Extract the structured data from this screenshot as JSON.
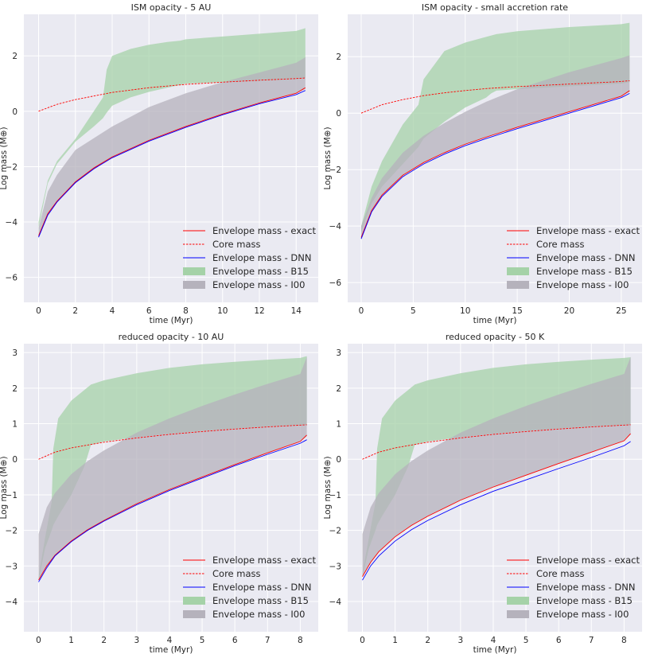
{
  "figure": {
    "background": "#ffffff",
    "panel_background": "#eaeaf2",
    "grid_color": "#ffffff"
  },
  "legend_labels": [
    "Envelope mass - exact",
    "Core mass",
    "Envelope mass - DNN",
    "Envelope mass - B15",
    "Envelope mass - I00"
  ],
  "colors": {
    "exact": "#ff0000",
    "core": "#ff0000",
    "dnn": "#0000ff",
    "b15": "#a5d2a8",
    "i00": "#b5b2bc"
  },
  "chart_data": [
    {
      "type": "area",
      "title": "ISM opacity - 5 AU",
      "xlabel": "time (Myr)",
      "ylabel": "Log mass (M⊕)",
      "xlim": [
        -0.8,
        15.2
      ],
      "ylim": [
        -6.9,
        3.5
      ],
      "xticks": [
        0,
        2,
        4,
        6,
        8,
        10,
        12,
        14
      ],
      "yticks": [
        -6,
        -4,
        -2,
        0,
        2
      ],
      "grid": true,
      "legend": "bottom-right",
      "series": [
        {
          "name": "Envelope mass - exact",
          "style": "solid",
          "color": "#ff0000",
          "x": [
            0,
            0.5,
            1,
            2,
            3,
            4,
            6,
            8,
            10,
            12,
            14,
            14.5
          ],
          "y": [
            -4.5,
            -3.7,
            -3.25,
            -2.55,
            -2.05,
            -1.65,
            -1.05,
            -0.55,
            -0.1,
            0.3,
            0.65,
            0.85
          ]
        },
        {
          "name": "Core mass",
          "style": "dashed",
          "color": "#ff0000",
          "x": [
            0,
            1,
            2,
            4,
            6,
            8,
            10,
            12,
            14,
            14.5
          ],
          "y": [
            0,
            0.25,
            0.42,
            0.68,
            0.85,
            0.97,
            1.05,
            1.12,
            1.18,
            1.2
          ]
        },
        {
          "name": "Envelope mass - DNN",
          "style": "solid",
          "color": "#0000ff",
          "x": [
            0,
            0.5,
            1,
            2,
            3,
            4,
            6,
            8,
            10,
            12,
            14,
            14.5
          ],
          "y": [
            -4.55,
            -3.75,
            -3.28,
            -2.58,
            -2.08,
            -1.68,
            -1.08,
            -0.58,
            -0.13,
            0.27,
            0.6,
            0.75
          ]
        },
        {
          "name": "Envelope mass - B15",
          "type": "band",
          "color": "#a5d2a8",
          "x": [
            0,
            0.5,
            1,
            2,
            3,
            3.5,
            3.7,
            4,
            5,
            6,
            7,
            7.7,
            8,
            10,
            12,
            14,
            14.5
          ],
          "lower": [
            -4.2,
            -2.6,
            -1.9,
            -1.1,
            -0.55,
            -0.25,
            -0.05,
            0.2,
            0.5,
            0.7,
            0.85,
            0.95,
            1.0,
            1.05,
            1.1,
            1.15,
            1.2
          ],
          "upper": [
            -4.0,
            -2.5,
            -1.8,
            -1.0,
            0.0,
            0.5,
            1.5,
            2.0,
            2.25,
            2.4,
            2.5,
            2.55,
            2.6,
            2.7,
            2.8,
            2.9,
            3.0
          ]
        },
        {
          "name": "Envelope mass - I00",
          "type": "band",
          "color": "#b5b2bc",
          "x": [
            0,
            0.5,
            1,
            2,
            4,
            6,
            8,
            10,
            12,
            14,
            14.5
          ],
          "lower": [
            -4.5,
            -3.7,
            -3.25,
            -2.55,
            -1.65,
            -1.05,
            -0.55,
            -0.1,
            0.3,
            0.65,
            0.8
          ],
          "upper": [
            -4.2,
            -2.9,
            -2.3,
            -1.4,
            -0.55,
            0.15,
            0.65,
            1.05,
            1.4,
            1.75,
            1.95
          ]
        }
      ]
    },
    {
      "type": "area",
      "title": "ISM opacity - small accretion rate",
      "xlabel": "time (Myr)",
      "ylabel": "Log mass (M⊕)",
      "xlim": [
        -1.3,
        27
      ],
      "ylim": [
        -6.7,
        3.5
      ],
      "xticks": [
        0,
        5,
        10,
        15,
        20,
        25
      ],
      "yticks": [
        -6,
        -4,
        -2,
        0,
        2
      ],
      "grid": true,
      "legend": "bottom-right",
      "series": [
        {
          "name": "Envelope mass - exact",
          "style": "solid",
          "color": "#ff0000",
          "x": [
            0,
            1,
            2,
            4,
            6,
            8,
            10,
            12,
            15,
            20,
            25,
            25.8
          ],
          "y": [
            -4.4,
            -3.45,
            -2.9,
            -2.2,
            -1.75,
            -1.4,
            -1.1,
            -0.85,
            -0.5,
            0.05,
            0.6,
            0.8
          ]
        },
        {
          "name": "Core mass",
          "style": "dashed",
          "color": "#ff0000",
          "x": [
            0,
            2,
            4,
            6,
            8,
            10,
            12,
            15,
            20,
            25,
            25.8
          ],
          "y": [
            0,
            0.3,
            0.48,
            0.62,
            0.72,
            0.8,
            0.87,
            0.94,
            1.03,
            1.12,
            1.15
          ]
        },
        {
          "name": "Envelope mass - DNN",
          "style": "solid",
          "color": "#0000ff",
          "x": [
            0,
            1,
            2,
            4,
            6,
            8,
            10,
            12,
            15,
            20,
            25,
            25.8
          ],
          "y": [
            -4.45,
            -3.5,
            -2.95,
            -2.25,
            -1.8,
            -1.45,
            -1.15,
            -0.9,
            -0.55,
            0.0,
            0.55,
            0.7
          ]
        },
        {
          "name": "Envelope mass - B15",
          "type": "band",
          "color": "#a5d2a8",
          "x": [
            0,
            1,
            2,
            4,
            5.5,
            6,
            8,
            10,
            12,
            12.5,
            13,
            15,
            20,
            25,
            25.8
          ],
          "lower": [
            -4.2,
            -3.2,
            -2.6,
            -1.8,
            -1.2,
            -0.9,
            -0.3,
            0.2,
            0.55,
            0.7,
            0.8,
            0.85,
            0.95,
            1.05,
            1.1
          ],
          "upper": [
            -4.0,
            -2.6,
            -1.7,
            -0.4,
            0.3,
            1.2,
            2.2,
            2.5,
            2.7,
            2.75,
            2.8,
            2.9,
            3.05,
            3.15,
            3.2
          ]
        },
        {
          "name": "Envelope mass - I00",
          "type": "band",
          "color": "#b5b2bc",
          "x": [
            0,
            1,
            2,
            4,
            6,
            8,
            10,
            12,
            15,
            20,
            25,
            25.8
          ],
          "lower": [
            -4.4,
            -3.45,
            -2.9,
            -2.2,
            -1.75,
            -1.4,
            -1.1,
            -0.85,
            -0.5,
            0.05,
            0.6,
            0.75
          ],
          "upper": [
            -4.0,
            -3.0,
            -2.3,
            -1.4,
            -0.8,
            -0.35,
            0.05,
            0.4,
            0.85,
            1.45,
            1.95,
            2.05
          ]
        }
      ]
    },
    {
      "type": "area",
      "title": "reduced opacity - 10 AU",
      "xlabel": "time (Myr)",
      "ylabel": "Log mass (M⊕)",
      "xlim": [
        -0.45,
        8.55
      ],
      "ylim": [
        -4.85,
        3.25
      ],
      "xticks": [
        0,
        1,
        2,
        3,
        4,
        5,
        6,
        7,
        8
      ],
      "yticks": [
        -4,
        -3,
        -2,
        -1,
        0,
        1,
        2,
        3
      ],
      "grid": true,
      "legend": "bottom-right",
      "series": [
        {
          "name": "Envelope mass - exact",
          "style": "solid",
          "color": "#ff0000",
          "x": [
            0,
            0.25,
            0.5,
            1,
            1.5,
            2,
            3,
            4,
            5,
            6,
            7,
            8,
            8.2
          ],
          "y": [
            -3.4,
            -3.0,
            -2.7,
            -2.3,
            -1.98,
            -1.72,
            -1.25,
            -0.85,
            -0.5,
            -0.15,
            0.18,
            0.5,
            0.68
          ]
        },
        {
          "name": "Core mass",
          "style": "dashed",
          "color": "#ff0000",
          "x": [
            0,
            0.5,
            1,
            2,
            3,
            4,
            5,
            6,
            7,
            8,
            8.2
          ],
          "y": [
            0,
            0.2,
            0.32,
            0.48,
            0.6,
            0.7,
            0.78,
            0.85,
            0.91,
            0.96,
            0.97
          ]
        },
        {
          "name": "Envelope mass - DNN",
          "style": "solid",
          "color": "#0000ff",
          "x": [
            0,
            0.25,
            0.5,
            1,
            1.5,
            2,
            3,
            4,
            5,
            6,
            7,
            8,
            8.2
          ],
          "y": [
            -3.45,
            -3.05,
            -2.72,
            -2.32,
            -2.0,
            -1.74,
            -1.28,
            -0.88,
            -0.53,
            -0.18,
            0.14,
            0.45,
            0.55
          ]
        },
        {
          "name": "Envelope mass - B15",
          "type": "band",
          "color": "#a5d2a8",
          "x": [
            0,
            0.2,
            0.4,
            0.45,
            0.6,
            1,
            1.4,
            1.6,
            2,
            3,
            4,
            5,
            6,
            7,
            8,
            8.2
          ],
          "lower": [
            -3.4,
            -2.5,
            -2.0,
            -1.85,
            -1.6,
            -1.0,
            -0.2,
            0.4,
            0.5,
            0.62,
            0.72,
            0.8,
            0.86,
            0.92,
            0.96,
            0.97
          ],
          "upper": [
            -3.3,
            -2.2,
            -1.2,
            0.3,
            1.15,
            1.65,
            1.95,
            2.1,
            2.22,
            2.42,
            2.57,
            2.67,
            2.74,
            2.8,
            2.85,
            2.9
          ]
        },
        {
          "name": "Envelope mass - I00",
          "type": "band",
          "color": "#b5b2bc",
          "x": [
            0,
            0.25,
            0.5,
            1,
            1.5,
            2,
            3,
            4,
            5,
            6,
            7,
            8,
            8.2
          ],
          "lower": [
            -3.4,
            -3.0,
            -2.7,
            -2.3,
            -1.98,
            -1.72,
            -1.25,
            -0.85,
            -0.5,
            -0.15,
            0.18,
            0.5,
            0.65
          ],
          "upper": [
            -2.1,
            -1.35,
            -0.95,
            -0.42,
            -0.05,
            0.25,
            0.75,
            1.15,
            1.5,
            1.82,
            2.12,
            2.4,
            2.88
          ]
        }
      ]
    },
    {
      "type": "area",
      "title": "reduced opacity - 50 K",
      "xlabel": "time (Myr)",
      "ylabel": "Log mass (M⊕)",
      "xlim": [
        -0.45,
        8.55
      ],
      "ylim": [
        -4.85,
        3.25
      ],
      "xticks": [
        0,
        1,
        2,
        3,
        4,
        5,
        6,
        7,
        8
      ],
      "yticks": [
        -4,
        -3,
        -2,
        -1,
        0,
        1,
        2,
        3
      ],
      "grid": true,
      "legend": "bottom-right",
      "series": [
        {
          "name": "Envelope mass - exact",
          "style": "solid",
          "color": "#ff0000",
          "x": [
            0,
            0.25,
            0.5,
            1,
            1.5,
            2,
            3,
            4,
            5,
            6,
            7,
            8,
            8.2
          ],
          "y": [
            -3.3,
            -2.9,
            -2.6,
            -2.18,
            -1.86,
            -1.6,
            -1.15,
            -0.78,
            -0.45,
            -0.12,
            0.2,
            0.52,
            0.72
          ]
        },
        {
          "name": "Core mass",
          "style": "dashed",
          "color": "#ff0000",
          "x": [
            0,
            0.5,
            1,
            2,
            3,
            4,
            5,
            6,
            7,
            8,
            8.2
          ],
          "y": [
            0,
            0.2,
            0.32,
            0.48,
            0.6,
            0.7,
            0.78,
            0.85,
            0.91,
            0.96,
            0.97
          ]
        },
        {
          "name": "Envelope mass - DNN",
          "style": "solid",
          "color": "#0000ff",
          "x": [
            0,
            0.25,
            0.5,
            1,
            1.5,
            2,
            3,
            4,
            5,
            6,
            7,
            8,
            8.2
          ],
          "y": [
            -3.4,
            -3.0,
            -2.72,
            -2.3,
            -1.98,
            -1.72,
            -1.28,
            -0.9,
            -0.58,
            -0.26,
            0.05,
            0.38,
            0.5
          ]
        },
        {
          "name": "Envelope mass - B15",
          "type": "band",
          "color": "#a5d2a8",
          "x": [
            0,
            0.2,
            0.4,
            0.45,
            0.6,
            1,
            1.4,
            1.6,
            2,
            3,
            4,
            5,
            6,
            7,
            8,
            8.2
          ],
          "lower": [
            -3.3,
            -2.5,
            -2.0,
            -1.85,
            -1.6,
            -1.0,
            -0.2,
            0.4,
            0.5,
            0.62,
            0.72,
            0.8,
            0.86,
            0.92,
            0.96,
            0.97
          ],
          "upper": [
            -3.2,
            -2.2,
            -1.2,
            0.3,
            1.15,
            1.65,
            1.95,
            2.1,
            2.22,
            2.42,
            2.57,
            2.67,
            2.74,
            2.8,
            2.85,
            2.87
          ]
        },
        {
          "name": "Envelope mass - I00",
          "type": "band",
          "color": "#b5b2bc",
          "x": [
            0,
            0.25,
            0.5,
            1,
            1.5,
            2,
            3,
            4,
            5,
            6,
            7,
            8,
            8.2
          ],
          "lower": [
            -3.3,
            -2.9,
            -2.6,
            -2.18,
            -1.86,
            -1.6,
            -1.15,
            -0.78,
            -0.45,
            -0.12,
            0.2,
            0.52,
            0.7
          ],
          "upper": [
            -2.1,
            -1.35,
            -0.95,
            -0.42,
            -0.05,
            0.25,
            0.75,
            1.15,
            1.5,
            1.82,
            2.12,
            2.4,
            2.88
          ]
        }
      ]
    }
  ]
}
